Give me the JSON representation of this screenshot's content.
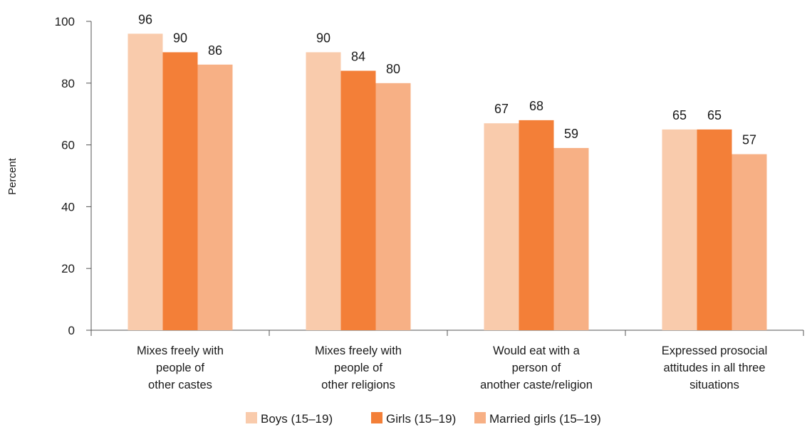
{
  "chart_data": {
    "type": "bar",
    "ylabel": "Percent",
    "xlabel": "",
    "ylim": [
      0,
      100
    ],
    "yticks": [
      0,
      20,
      40,
      60,
      80,
      100
    ],
    "grid": false,
    "legend_position": "bottom",
    "categories": [
      [
        "Mixes freely with",
        "people of",
        "other castes"
      ],
      [
        "Mixes freely with",
        "people of",
        "other religions"
      ],
      [
        "Would eat with a",
        "person of",
        "another caste/religion"
      ],
      [
        "Expressed prosocial",
        "attitudes in all three",
        "situations"
      ]
    ],
    "series": [
      {
        "name": "Boys (15–19)",
        "color": "#f9cbac",
        "values": [
          96,
          90,
          67,
          65
        ]
      },
      {
        "name": "Girls (15–19)",
        "color": "#f37f38",
        "values": [
          90,
          84,
          68,
          65
        ]
      },
      {
        "name": "Married girls (15–19)",
        "color": "#f7b085",
        "values": [
          86,
          80,
          59,
          57
        ]
      }
    ]
  }
}
